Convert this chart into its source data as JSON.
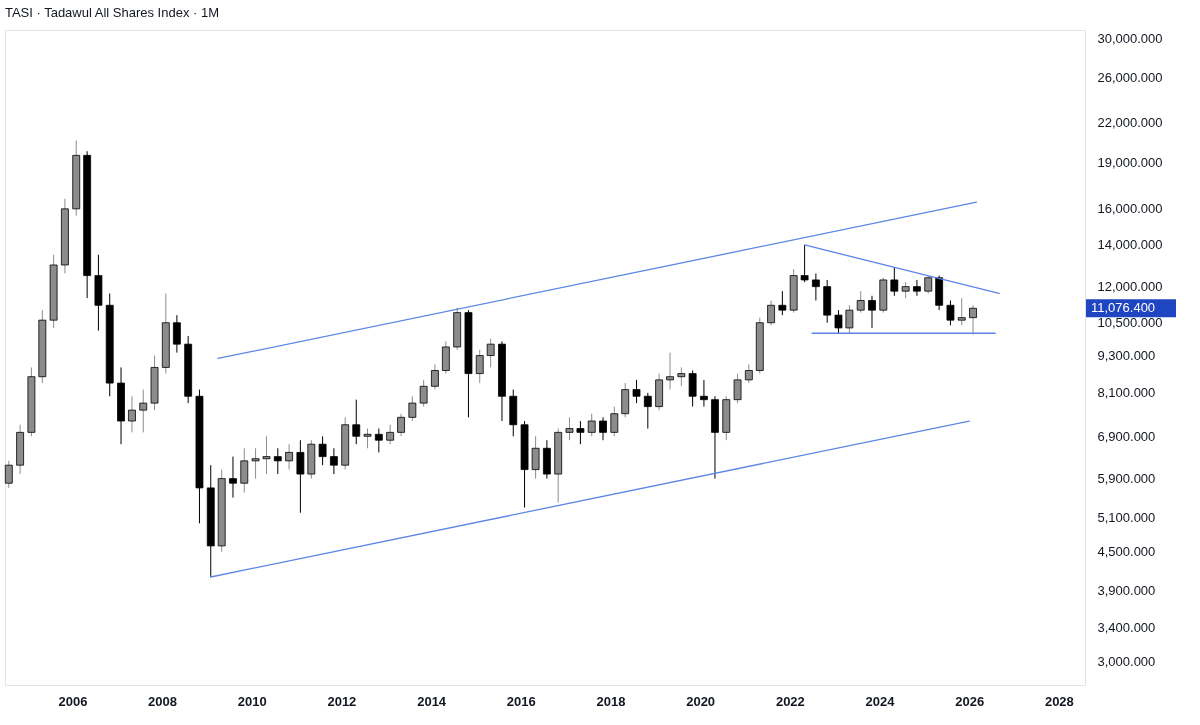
{
  "chart_data": {
    "type": "candlestick",
    "title": "TASI · Tadawul All Shares Index · 1M",
    "x": [
      "2004-08",
      "2004-11",
      "2005-02",
      "2005-05",
      "2005-08",
      "2005-11",
      "2006-02",
      "2006-05",
      "2006-08",
      "2006-11",
      "2007-02",
      "2007-05",
      "2007-08",
      "2007-11",
      "2008-02",
      "2008-05",
      "2008-08",
      "2008-11",
      "2009-02",
      "2009-05",
      "2009-08",
      "2009-11",
      "2010-02",
      "2010-05",
      "2010-08",
      "2010-11",
      "2011-02",
      "2011-05",
      "2011-08",
      "2011-11",
      "2012-02",
      "2012-05",
      "2012-08",
      "2012-11",
      "2013-02",
      "2013-05",
      "2013-08",
      "2013-11",
      "2014-02",
      "2014-05",
      "2014-08",
      "2014-11",
      "2015-02",
      "2015-05",
      "2015-08",
      "2015-11",
      "2016-02",
      "2016-05",
      "2016-08",
      "2016-11",
      "2017-02",
      "2017-05",
      "2017-08",
      "2017-11",
      "2018-02",
      "2018-05",
      "2018-08",
      "2018-11",
      "2019-02",
      "2019-05",
      "2019-08",
      "2019-11",
      "2020-02",
      "2020-05",
      "2020-08",
      "2020-11",
      "2021-02",
      "2021-05",
      "2021-08",
      "2021-11",
      "2022-02",
      "2022-05",
      "2022-08",
      "2022-11",
      "2023-02",
      "2023-05",
      "2023-08",
      "2023-11",
      "2024-02",
      "2024-05",
      "2024-08",
      "2024-11",
      "2025-02",
      "2025-05",
      "2025-08",
      "2025-11",
      "2026-02"
    ],
    "ohlc": [
      [
        5800,
        6300,
        5700,
        6200
      ],
      [
        6200,
        7200,
        6000,
        7000
      ],
      [
        7000,
        8900,
        6900,
        8600
      ],
      [
        8600,
        11000,
        8400,
        10600
      ],
      [
        10600,
        13500,
        10300,
        13000
      ],
      [
        13000,
        16600,
        12600,
        16000
      ],
      [
        16000,
        20600,
        15600,
        19500
      ],
      [
        19500,
        19800,
        11500,
        12500
      ],
      [
        12500,
        13500,
        10200,
        11200
      ],
      [
        11200,
        11700,
        8000,
        8400
      ],
      [
        8400,
        8900,
        6700,
        7300
      ],
      [
        7300,
        8000,
        7000,
        7600
      ],
      [
        7600,
        8200,
        7000,
        7800
      ],
      [
        7800,
        9300,
        7600,
        8900
      ],
      [
        8900,
        11700,
        8700,
        10500
      ],
      [
        10500,
        10800,
        9400,
        9700
      ],
      [
        9700,
        10000,
        7800,
        8000
      ],
      [
        8000,
        8200,
        5000,
        5700
      ],
      [
        5700,
        6200,
        4100,
        4600
      ],
      [
        4600,
        6100,
        4500,
        5900
      ],
      [
        5900,
        6400,
        5500,
        5800
      ],
      [
        5800,
        6600,
        5600,
        6300
      ],
      [
        6300,
        6600,
        5900,
        6350
      ],
      [
        6350,
        6900,
        6000,
        6400
      ],
      [
        6400,
        6600,
        6000,
        6300
      ],
      [
        6300,
        6700,
        6100,
        6500
      ],
      [
        6500,
        6800,
        5200,
        6000
      ],
      [
        6000,
        6800,
        5900,
        6700
      ],
      [
        6700,
        6900,
        6200,
        6400
      ],
      [
        6400,
        6600,
        6000,
        6200
      ],
      [
        6200,
        7400,
        6100,
        7200
      ],
      [
        7200,
        7900,
        6700,
        6900
      ],
      [
        6900,
        7100,
        6600,
        6950
      ],
      [
        6950,
        7100,
        6500,
        6800
      ],
      [
        6800,
        7200,
        6700,
        7000
      ],
      [
        7000,
        7500,
        6900,
        7400
      ],
      [
        7400,
        8000,
        7300,
        7800
      ],
      [
        7800,
        8500,
        7700,
        8300
      ],
      [
        8300,
        9000,
        8200,
        8800
      ],
      [
        8800,
        9800,
        8700,
        9600
      ],
      [
        9600,
        11100,
        9500,
        10900
      ],
      [
        10900,
        11000,
        7400,
        8700
      ],
      [
        8700,
        9500,
        8400,
        9300
      ],
      [
        9300,
        9900,
        8900,
        9700
      ],
      [
        9700,
        9800,
        7300,
        8000
      ],
      [
        8000,
        8200,
        6900,
        7200
      ],
      [
        7200,
        7300,
        5300,
        6100
      ],
      [
        6100,
        6900,
        5900,
        6600
      ],
      [
        6600,
        6800,
        5900,
        6000
      ],
      [
        6000,
        7100,
        5400,
        7000
      ],
      [
        7000,
        7400,
        6800,
        7100
      ],
      [
        7100,
        7300,
        6700,
        7000
      ],
      [
        7000,
        7500,
        6900,
        7300
      ],
      [
        7300,
        7400,
        6800,
        7000
      ],
      [
        7000,
        7700,
        6900,
        7500
      ],
      [
        7500,
        8400,
        7400,
        8200
      ],
      [
        8200,
        8500,
        7800,
        8000
      ],
      [
        8000,
        8100,
        7100,
        7700
      ],
      [
        7700,
        8700,
        7600,
        8500
      ],
      [
        8500,
        9400,
        8200,
        8600
      ],
      [
        8600,
        8900,
        8300,
        8700
      ],
      [
        8700,
        8800,
        7700,
        8000
      ],
      [
        8000,
        8500,
        7700,
        7900
      ],
      [
        7900,
        8000,
        5900,
        7000
      ],
      [
        7000,
        8000,
        6800,
        7900
      ],
      [
        7900,
        8700,
        7800,
        8500
      ],
      [
        8500,
        9000,
        8400,
        8800
      ],
      [
        8800,
        10700,
        8700,
        10500
      ],
      [
        10500,
        11400,
        10400,
        11200
      ],
      [
        11200,
        11800,
        10800,
        11000
      ],
      [
        11000,
        12800,
        10900,
        12500
      ],
      [
        12500,
        14000,
        12200,
        12300
      ],
      [
        12300,
        12600,
        11400,
        12000
      ],
      [
        12000,
        12300,
        10500,
        10800
      ],
      [
        10800,
        11000,
        10100,
        10300
      ],
      [
        10300,
        11200,
        10100,
        11000
      ],
      [
        11000,
        11800,
        10900,
        11400
      ],
      [
        11400,
        11600,
        10300,
        11000
      ],
      [
        11000,
        12400,
        10900,
        12300
      ],
      [
        12300,
        12900,
        11600,
        11800
      ],
      [
        11800,
        12200,
        11500,
        12000
      ],
      [
        12000,
        12300,
        11600,
        11800
      ],
      [
        11800,
        12500,
        11700,
        12400
      ],
      [
        12400,
        12500,
        11000,
        11200
      ],
      [
        11200,
        11400,
        10400,
        10600
      ],
      [
        10600,
        11500,
        10400,
        10700
      ],
      [
        10700,
        11200,
        10050,
        11076.4
      ]
    ],
    "colors": [
      "#8c8c8c",
      "#8c8c8c",
      "#8c8c8c",
      "#8c8c8c",
      "#8c8c8c",
      "#8c8c8c",
      "#8c8c8c",
      "#000000",
      "#000000",
      "#000000",
      "#000000",
      "#8c8c8c",
      "#8c8c8c",
      "#8c8c8c",
      "#8c8c8c",
      "#000000",
      "#000000",
      "#000000",
      "#000000",
      "#8c8c8c",
      "#000000",
      "#8c8c8c",
      "#8c8c8c",
      "#8c8c8c",
      "#000000",
      "#8c8c8c",
      "#000000",
      "#8c8c8c",
      "#000000",
      "#000000",
      "#8c8c8c",
      "#000000",
      "#8c8c8c",
      "#000000",
      "#8c8c8c",
      "#8c8c8c",
      "#8c8c8c",
      "#8c8c8c",
      "#8c8c8c",
      "#8c8c8c",
      "#8c8c8c",
      "#000000",
      "#8c8c8c",
      "#8c8c8c",
      "#000000",
      "#000000",
      "#000000",
      "#8c8c8c",
      "#000000",
      "#8c8c8c",
      "#8c8c8c",
      "#000000",
      "#8c8c8c",
      "#000000",
      "#8c8c8c",
      "#8c8c8c",
      "#000000",
      "#000000",
      "#8c8c8c",
      "#8c8c8c",
      "#8c8c8c",
      "#000000",
      "#000000",
      "#000000",
      "#8c8c8c",
      "#8c8c8c",
      "#8c8c8c",
      "#8c8c8c",
      "#8c8c8c",
      "#000000",
      "#8c8c8c",
      "#000000",
      "#000000",
      "#000000",
      "#000000",
      "#8c8c8c",
      "#8c8c8c",
      "#000000",
      "#8c8c8c",
      "#000000",
      "#8c8c8c",
      "#000000",
      "#8c8c8c",
      "#000000",
      "#000000",
      "#8c8c8c",
      "#8c8c8c"
    ],
    "series": [
      {
        "type": "line",
        "color": "#5b86e5",
        "x": [
          "2009-04",
          "2026-03"
        ],
        "values": [
          9200,
          16400
        ]
      },
      {
        "type": "line",
        "color": "#5b86e5",
        "x": [
          "2009-02",
          "2026-01"
        ],
        "values": [
          4100,
          7300
        ]
      },
      {
        "type": "line",
        "color": "#5b86e5",
        "x": [
          "2022-05",
          "2026-09"
        ],
        "values": [
          14000,
          11700
        ]
      },
      {
        "type": "line",
        "color": "#5b86e5",
        "x": [
          "2022-07",
          "2026-08"
        ],
        "values": [
          10100,
          10100
        ]
      }
    ],
    "xlim": [
      "2004-07",
      "2028-08"
    ],
    "xticks": [
      "2006",
      "2008",
      "2010",
      "2012",
      "2014",
      "2016",
      "2018",
      "2020",
      "2022",
      "2024",
      "2026",
      "2028"
    ],
    "log": true,
    "ylim": [
      2750,
      31000
    ],
    "yticks": [
      {
        "value": 3000,
        "label": "3,000.000"
      },
      {
        "value": 3400,
        "label": "3,400.000"
      },
      {
        "value": 3900,
        "label": "3,900.000"
      },
      {
        "value": 4500,
        "label": "4,500.000"
      },
      {
        "value": 5100,
        "label": "5,100.000"
      },
      {
        "value": 5900,
        "label": "5,900.000"
      },
      {
        "value": 6900,
        "label": "6,900.000"
      },
      {
        "value": 8100,
        "label": "8,100.000"
      },
      {
        "value": 9300,
        "label": "9,300.000"
      },
      {
        "value": 10500,
        "label": "10,500.000"
      },
      {
        "value": 12000,
        "label": "12,000.000"
      },
      {
        "value": 14000,
        "label": "14,000.000"
      },
      {
        "value": 16000,
        "label": "16,000.000"
      },
      {
        "value": 19000,
        "label": "19,000.000"
      },
      {
        "value": 22000,
        "label": "22,000.000"
      },
      {
        "value": 26000,
        "label": "26,000.000"
      },
      {
        "value": 30000,
        "label": "30,000.000"
      }
    ],
    "annotations": [
      "11,076.400"
    ],
    "grid": false
  }
}
